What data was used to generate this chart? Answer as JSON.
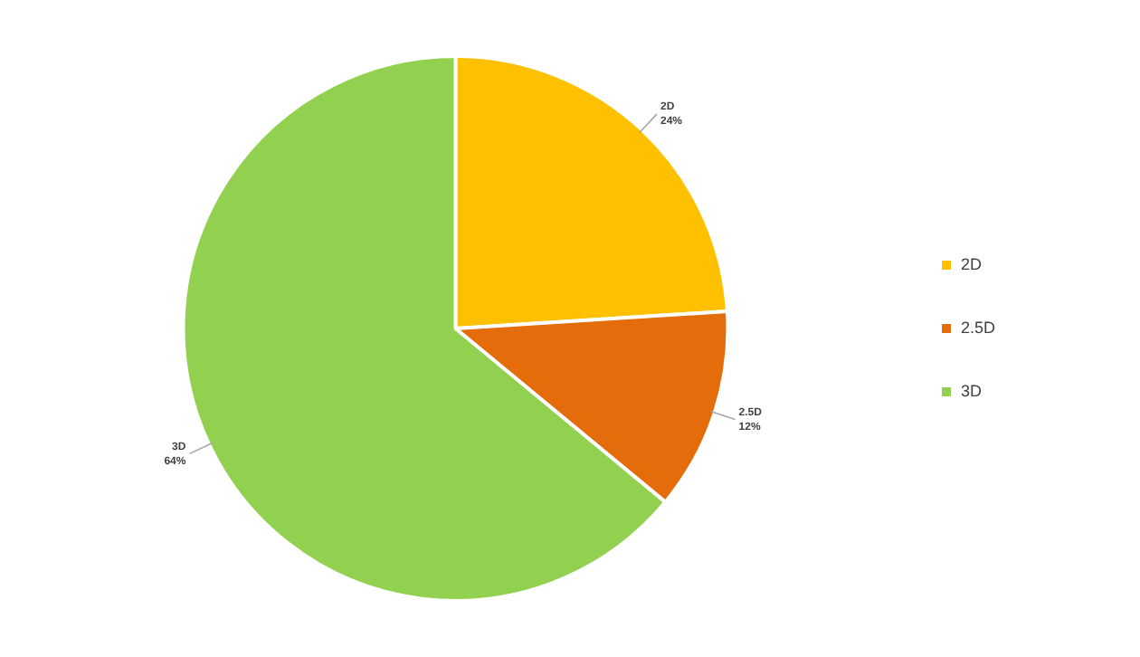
{
  "chart_data": {
    "type": "pie",
    "categories": [
      "2D",
      "2.5D",
      "3D"
    ],
    "values": [
      24,
      12,
      64
    ],
    "value_labels": [
      "24%",
      "12%",
      "64%"
    ],
    "colors": [
      "#ffc000",
      "#e46c0a",
      "#92d050"
    ],
    "legend": "right"
  }
}
